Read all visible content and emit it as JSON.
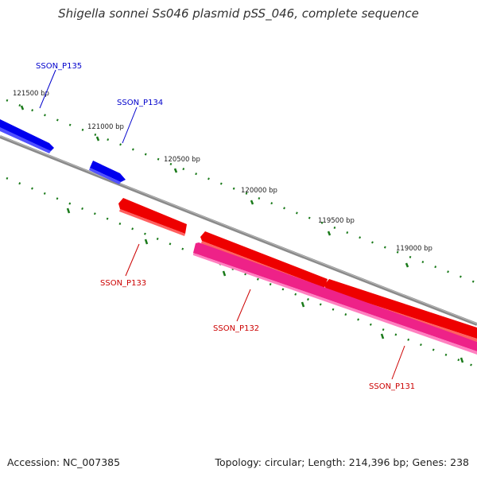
{
  "title": "Shigella sonnei Ss046 plasmid pSS_046, complete sequence",
  "footer": {
    "accession": "Accession: NC_007385",
    "stats": "Topology: circular; Length: 214,396 bp; Genes: 238"
  },
  "ruler": {
    "labels": [
      "121500 bp",
      "121000 bp",
      "120500 bp",
      "120000 bp",
      "119500 bp",
      "119000 bp"
    ],
    "tick_color": "#1a7a1a"
  },
  "backbone_color": "#888888",
  "genes": [
    {
      "name": "SSON_P135",
      "strand": "forward",
      "color": "#0000ee"
    },
    {
      "name": "SSON_P134",
      "strand": "forward",
      "color": "#0000ee"
    },
    {
      "name": "SSON_P133",
      "strand": "reverse",
      "color": "#ee0000"
    },
    {
      "name": "SSON_P132",
      "strand": "reverse",
      "color": "#ee0000"
    },
    {
      "name": "SSON_P131",
      "strand": "reverse",
      "color": "#ee0000"
    },
    {
      "name": "",
      "strand": "reverse",
      "color": "#ee2288"
    }
  ]
}
